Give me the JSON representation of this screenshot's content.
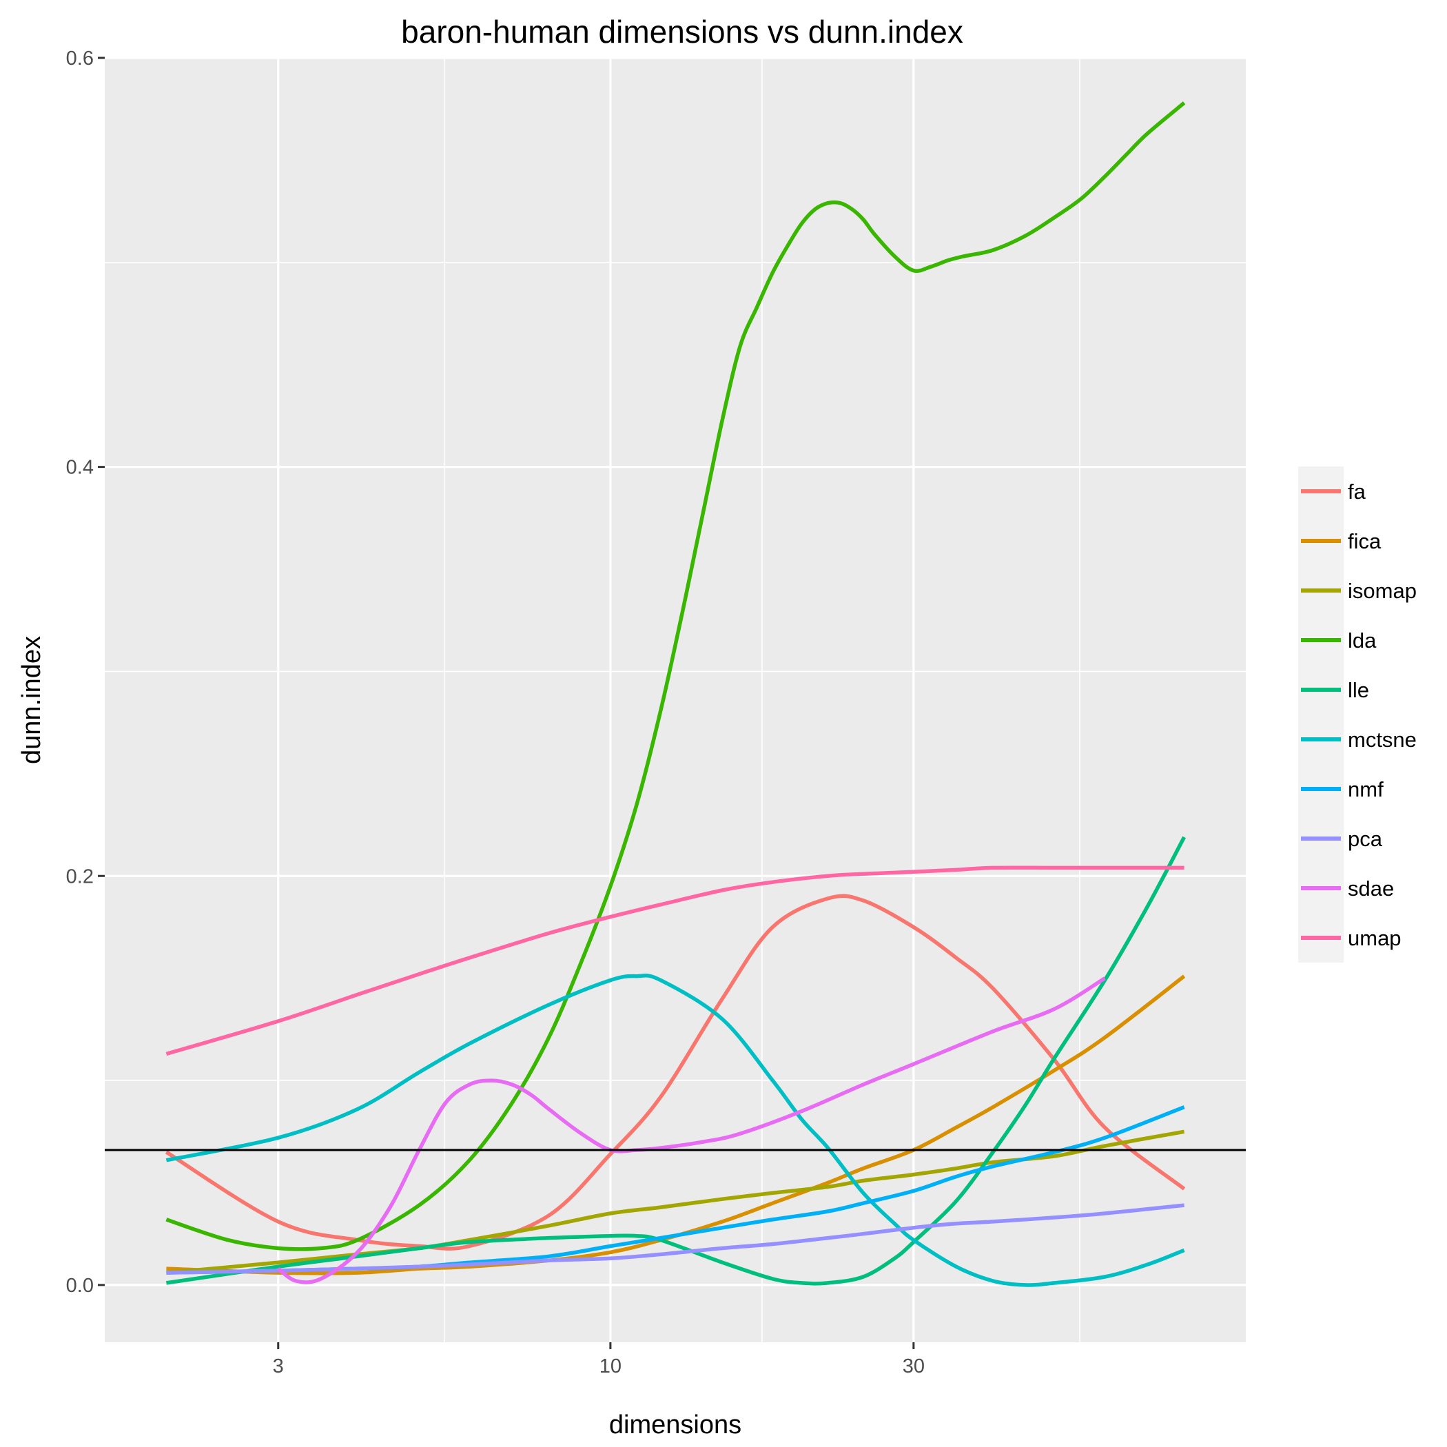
{
  "chart_data": {
    "type": "line",
    "title": "baron-human dimensions vs dunn.index",
    "xlabel": "dimensions",
    "ylabel": "dunn.index",
    "x_scale": "log10",
    "xlim": [
      1.6,
      100
    ],
    "ylim": [
      -0.028,
      0.6
    ],
    "x_ticks": [
      3,
      10,
      30
    ],
    "y_ticks": [
      0.0,
      0.2,
      0.4,
      0.6
    ],
    "y_tick_labels": [
      "0.0",
      "0.2",
      "0.4",
      "0.6"
    ],
    "reference_line_y": 0.066,
    "reference_line_color": "#000000",
    "grid": true,
    "panel_background": "#ebebeb",
    "legend_position": "right",
    "series": [
      {
        "name": "fa",
        "color": "#F8766D",
        "x": [
          2,
          3,
          4,
          5,
          6,
          8,
          10,
          12,
          15,
          18,
          22,
          25,
          30,
          35,
          40,
          50,
          60,
          80
        ],
        "y": [
          0.065,
          0.031,
          0.022,
          0.019,
          0.019,
          0.034,
          0.064,
          0.092,
          0.14,
          0.175,
          0.189,
          0.188,
          0.175,
          0.16,
          0.145,
          0.11,
          0.077,
          0.047
        ]
      },
      {
        "name": "fica",
        "color": "#D89000",
        "x": [
          2,
          3,
          4,
          5,
          6,
          8,
          10,
          12,
          15,
          18,
          22,
          25,
          30,
          35,
          40,
          50,
          60,
          80
        ],
        "y": [
          0.008,
          0.006,
          0.006,
          0.008,
          0.009,
          0.012,
          0.016,
          0.022,
          0.031,
          0.04,
          0.05,
          0.057,
          0.066,
          0.077,
          0.087,
          0.105,
          0.121,
          0.151
        ]
      },
      {
        "name": "isomap",
        "color": "#A3A500",
        "x": [
          2,
          3,
          4,
          5,
          6,
          8,
          10,
          12,
          15,
          18,
          22,
          25,
          30,
          35,
          40,
          50,
          60,
          80
        ],
        "y": [
          0.006,
          0.011,
          0.015,
          0.018,
          0.022,
          0.029,
          0.035,
          0.038,
          0.042,
          0.045,
          0.048,
          0.051,
          0.054,
          0.057,
          0.06,
          0.063,
          0.068,
          0.075
        ]
      },
      {
        "name": "lda",
        "color": "#39B600",
        "x": [
          2,
          2.5,
          3,
          3.5,
          4,
          5,
          6,
          7,
          8,
          9,
          10,
          11,
          12,
          13,
          14,
          15,
          16,
          17,
          18,
          19,
          20,
          21,
          22,
          23,
          24,
          25,
          26,
          28,
          30,
          32,
          34,
          36,
          40,
          45,
          50,
          55,
          60,
          65,
          70,
          80
        ],
        "y": [
          0.032,
          0.022,
          0.018,
          0.018,
          0.022,
          0.039,
          0.061,
          0.089,
          0.121,
          0.158,
          0.195,
          0.235,
          0.281,
          0.33,
          0.378,
          0.423,
          0.459,
          0.478,
          0.495,
          0.508,
          0.519,
          0.526,
          0.529,
          0.529,
          0.526,
          0.521,
          0.514,
          0.503,
          0.496,
          0.498,
          0.501,
          0.503,
          0.506,
          0.513,
          0.522,
          0.531,
          0.542,
          0.553,
          0.563,
          0.578
        ]
      },
      {
        "name": "lle",
        "color": "#00BF7D",
        "x": [
          2,
          3,
          4,
          5,
          6,
          8,
          10,
          11,
          12,
          15,
          18,
          20,
          22,
          25,
          28,
          30,
          35,
          40,
          45,
          50,
          60,
          70,
          80
        ],
        "y": [
          0.001,
          0.009,
          0.014,
          0.018,
          0.021,
          0.023,
          0.024,
          0.024,
          0.022,
          0.011,
          0.003,
          0.001,
          0.001,
          0.004,
          0.013,
          0.021,
          0.041,
          0.065,
          0.088,
          0.111,
          0.149,
          0.185,
          0.219
        ]
      },
      {
        "name": "mctsne",
        "color": "#00BFC4",
        "x": [
          2,
          3,
          4,
          5,
          6,
          8,
          10,
          11,
          12,
          15,
          18,
          20,
          22,
          25,
          28,
          30,
          35,
          40,
          45,
          50,
          60,
          70,
          80
        ],
        "y": [
          0.061,
          0.072,
          0.086,
          0.104,
          0.118,
          0.137,
          0.149,
          0.151,
          0.149,
          0.13,
          0.1,
          0.081,
          0.067,
          0.045,
          0.03,
          0.022,
          0.009,
          0.002,
          0.0,
          0.001,
          0.004,
          0.01,
          0.017
        ]
      },
      {
        "name": "nmf",
        "color": "#00B0F6",
        "x": [
          2,
          3,
          4,
          5,
          6,
          8,
          10,
          12,
          15,
          18,
          22,
          25,
          30,
          35,
          40,
          50,
          60,
          80
        ],
        "y": [
          0.006,
          0.007,
          0.008,
          0.009,
          0.011,
          0.014,
          0.019,
          0.023,
          0.028,
          0.032,
          0.036,
          0.04,
          0.046,
          0.053,
          0.058,
          0.065,
          0.072,
          0.087
        ]
      },
      {
        "name": "pca",
        "color": "#9590FF",
        "x": [
          2,
          3,
          4,
          5,
          6,
          8,
          10,
          12,
          15,
          18,
          22,
          25,
          30,
          35,
          40,
          50,
          60,
          80
        ],
        "y": [
          0.006,
          0.007,
          0.008,
          0.009,
          0.01,
          0.012,
          0.013,
          0.015,
          0.018,
          0.02,
          0.023,
          0.025,
          0.028,
          0.03,
          0.031,
          0.033,
          0.035,
          0.039
        ]
      },
      {
        "name": "sdae",
        "color": "#E76BF3",
        "x": [
          3,
          3.2,
          3.5,
          4,
          4.5,
          5,
          5.5,
          6,
          6.5,
          7,
          7.5,
          8,
          9,
          10,
          11,
          12,
          14,
          16,
          20,
          25,
          30,
          40,
          50,
          60
        ],
        "y": [
          0.008,
          0.002,
          0.003,
          0.016,
          0.038,
          0.066,
          0.089,
          0.098,
          0.1,
          0.098,
          0.093,
          0.086,
          0.074,
          0.066,
          0.066,
          0.067,
          0.07,
          0.074,
          0.085,
          0.098,
          0.108,
          0.124,
          0.135,
          0.15
        ]
      },
      {
        "name": "umap",
        "color": "#FF67A4",
        "x": [
          2,
          3,
          4,
          5,
          6,
          8,
          10,
          12,
          15,
          18,
          22,
          25,
          30,
          35,
          40,
          50,
          60,
          80
        ],
        "y": [
          0.113,
          0.129,
          0.142,
          0.152,
          0.16,
          0.172,
          0.18,
          0.186,
          0.193,
          0.197,
          0.2,
          0.201,
          0.202,
          0.203,
          0.204,
          0.204,
          0.204,
          0.204
        ]
      }
    ]
  }
}
